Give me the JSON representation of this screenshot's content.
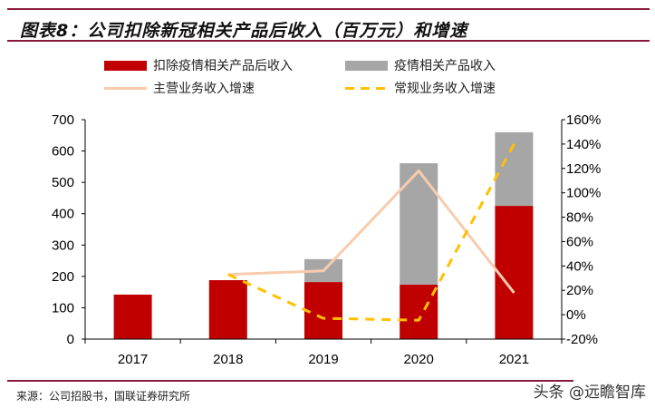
{
  "title": "图表8：公司扣除新冠相关产品后收入（百万元）和增速",
  "source": "来源：公司招股书，国联证券研究所",
  "watermark": "头条 @远瞻智库",
  "chart_data": {
    "type": "bar",
    "title": "",
    "categories": [
      "2017",
      "2018",
      "2019",
      "2020",
      "2021"
    ],
    "stacked": true,
    "series": [
      {
        "name": "扣除疫情相关产品后收入",
        "type": "bar",
        "axis": "left",
        "color": "#c00000",
        "values": [
          142,
          188,
          182,
          174,
          425
        ]
      },
      {
        "name": "疫情相关产品收入",
        "type": "bar",
        "axis": "left",
        "color": "#a6a6a6",
        "values": [
          0,
          0,
          73,
          387,
          235
        ]
      },
      {
        "name": "主营业务收入增速",
        "type": "line",
        "axis": "right",
        "color": "#f8cbad",
        "values": [
          null,
          33,
          36,
          118,
          18
        ]
      },
      {
        "name": "常规业务收入增速",
        "type": "line",
        "axis": "right",
        "dashed": true,
        "color": "#ffc000",
        "values": [
          null,
          33,
          -3,
          -4.5,
          140
        ]
      }
    ],
    "left_axis": {
      "ylim": [
        0,
        700
      ],
      "ticks": [
        "0",
        "100",
        "200",
        "300",
        "400",
        "500",
        "600",
        "700"
      ]
    },
    "right_axis": {
      "ylim": [
        -20,
        160
      ],
      "unit": "%",
      "ticks": [
        "-20%",
        "0%",
        "20%",
        "40%",
        "60%",
        "80%",
        "100%",
        "120%",
        "140%",
        "160%"
      ]
    },
    "legend_position": "top",
    "grid": false
  }
}
